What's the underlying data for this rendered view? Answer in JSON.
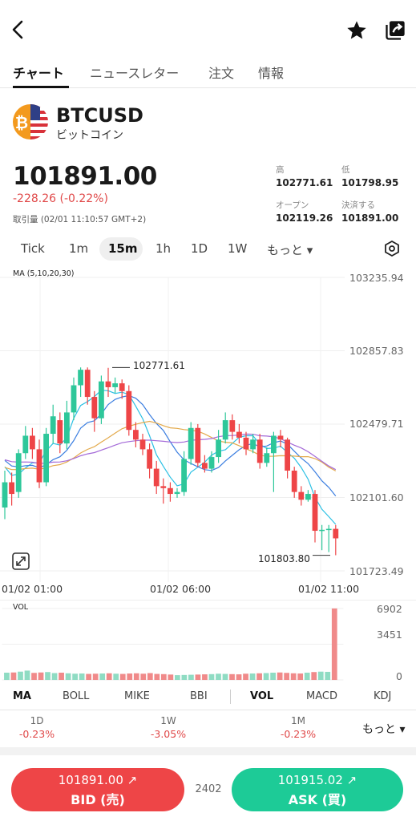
{
  "tabs": [
    "チャート",
    "ニュースレター",
    "注文",
    "情報"
  ],
  "instrument": {
    "symbol": "BTCUSD",
    "name": "ビットコイン",
    "price": "101891.00",
    "change": "-228.26 (-0.22%)",
    "volume_time": "取引量 (02/01 11:10:57 GMT+2)"
  },
  "stats": {
    "high_label": "高",
    "high_value": "102771.61",
    "low_label": "低",
    "low_value": "101798.95",
    "open_label": "オープン",
    "open_value": "102119.26",
    "close_label": "決済する",
    "close_value": "101891.00"
  },
  "periods": [
    "Tick",
    "1m",
    "15m",
    "1h",
    "1D",
    "1W",
    "もっと ▾"
  ],
  "selected_period": "15m",
  "chart_data": {
    "type": "candlestick",
    "indicator": "MA (5,10,20,30)",
    "y_ticks": [
      "103235.94",
      "102857.83",
      "102479.71",
      "102101.60",
      "101723.49"
    ],
    "ylim": [
      101723.49,
      103235.94
    ],
    "x_ticks": [
      "01/02 01:00",
      "01/02 06:00",
      "01/02 11:00"
    ],
    "high_marker": "102771.61",
    "low_marker": "101803.80",
    "candles": [
      {
        "o": 102050,
        "c": 102180,
        "h": 102240,
        "l": 101990
      },
      {
        "o": 102180,
        "c": 102120,
        "h": 102230,
        "l": 102060
      },
      {
        "o": 102130,
        "c": 102330,
        "h": 102350,
        "l": 102100
      },
      {
        "o": 102330,
        "c": 102420,
        "h": 102470,
        "l": 102300
      },
      {
        "o": 102420,
        "c": 102350,
        "h": 102460,
        "l": 102300
      },
      {
        "o": 102350,
        "c": 102180,
        "h": 102400,
        "l": 102150
      },
      {
        "o": 102180,
        "c": 102430,
        "h": 102460,
        "l": 102160
      },
      {
        "o": 102430,
        "c": 102520,
        "h": 102580,
        "l": 102380
      },
      {
        "o": 102500,
        "c": 102380,
        "h": 102540,
        "l": 102330
      },
      {
        "o": 102380,
        "c": 102540,
        "h": 102600,
        "l": 102350
      },
      {
        "o": 102540,
        "c": 102680,
        "h": 102720,
        "l": 102500
      },
      {
        "o": 102680,
        "c": 102760,
        "h": 102772,
        "l": 102620
      },
      {
        "o": 102760,
        "c": 102620,
        "h": 102772,
        "l": 102580
      },
      {
        "o": 102620,
        "c": 102510,
        "h": 102650,
        "l": 102440
      },
      {
        "o": 102510,
        "c": 102700,
        "h": 102730,
        "l": 102480
      },
      {
        "o": 102700,
        "c": 102670,
        "h": 102770,
        "l": 102620
      },
      {
        "o": 102670,
        "c": 102690,
        "h": 102720,
        "l": 102640
      },
      {
        "o": 102690,
        "c": 102650,
        "h": 102710,
        "l": 102610
      },
      {
        "o": 102650,
        "c": 102450,
        "h": 102680,
        "l": 102420
      },
      {
        "o": 102450,
        "c": 102400,
        "h": 102490,
        "l": 102360
      },
      {
        "o": 102400,
        "c": 102350,
        "h": 102430,
        "l": 102320
      },
      {
        "o": 102350,
        "c": 102250,
        "h": 102380,
        "l": 102200
      },
      {
        "o": 102250,
        "c": 102160,
        "h": 102290,
        "l": 102120
      },
      {
        "o": 102160,
        "c": 102150,
        "h": 102200,
        "l": 102070
      },
      {
        "o": 102150,
        "c": 102120,
        "h": 102180,
        "l": 102080
      },
      {
        "o": 102120,
        "c": 102130,
        "h": 102150,
        "l": 102100
      },
      {
        "o": 102130,
        "c": 102300,
        "h": 102340,
        "l": 102110
      },
      {
        "o": 102300,
        "c": 102460,
        "h": 102490,
        "l": 102270
      },
      {
        "o": 102460,
        "c": 102280,
        "h": 102480,
        "l": 102260
      },
      {
        "o": 102280,
        "c": 102250,
        "h": 102320,
        "l": 102230
      },
      {
        "o": 102250,
        "c": 102310,
        "h": 102340,
        "l": 102230
      },
      {
        "o": 102310,
        "c": 102400,
        "h": 102450,
        "l": 102280
      },
      {
        "o": 102400,
        "c": 102500,
        "h": 102540,
        "l": 102380
      },
      {
        "o": 102500,
        "c": 102440,
        "h": 102530,
        "l": 102400
      },
      {
        "o": 102440,
        "c": 102410,
        "h": 102480,
        "l": 102380
      },
      {
        "o": 102410,
        "c": 102350,
        "h": 102440,
        "l": 102320
      },
      {
        "o": 102350,
        "c": 102400,
        "h": 102430,
        "l": 102330
      },
      {
        "o": 102400,
        "c": 102280,
        "h": 102430,
        "l": 102250
      },
      {
        "o": 102280,
        "c": 102330,
        "h": 102360,
        "l": 102260
      },
      {
        "o": 102330,
        "c": 102420,
        "h": 102440,
        "l": 102130
      },
      {
        "o": 102420,
        "c": 102400,
        "h": 102450,
        "l": 102360
      },
      {
        "o": 102400,
        "c": 102240,
        "h": 102410,
        "l": 102200
      },
      {
        "o": 102240,
        "c": 102130,
        "h": 102260,
        "l": 102100
      },
      {
        "o": 102130,
        "c": 102090,
        "h": 102160,
        "l": 102060
      },
      {
        "o": 102090,
        "c": 102120,
        "h": 102140,
        "l": 102080
      },
      {
        "o": 102120,
        "c": 101930,
        "h": 102140,
        "l": 101870
      },
      {
        "o": 101930,
        "c": 101935,
        "h": 101960,
        "l": 101830
      },
      {
        "o": 101935,
        "c": 101940,
        "h": 101960,
        "l": 101820
      },
      {
        "o": 101940,
        "c": 101891,
        "h": 101960,
        "l": 101804
      }
    ],
    "ma_series": [
      {
        "name": "MA5",
        "color": "#2bc0e4"
      },
      {
        "name": "MA10",
        "color": "#3b7ee0"
      },
      {
        "name": "MA20",
        "color": "#e3a94a"
      },
      {
        "name": "MA30",
        "color": "#a46ad8"
      }
    ],
    "volume": {
      "label": "VOL",
      "y_ticks": [
        "6902",
        "3451",
        "0"
      ],
      "ylim": [
        0,
        6902
      ],
      "values": [
        700,
        720,
        800,
        900,
        680,
        720,
        760,
        660,
        700,
        640,
        600,
        620,
        580,
        600,
        620,
        640,
        600,
        580,
        620,
        640,
        600,
        660,
        580,
        560,
        520,
        460,
        480,
        500,
        520,
        540,
        560,
        600,
        580,
        560,
        540,
        600,
        620,
        640,
        660,
        700,
        720,
        680,
        640,
        620,
        700,
        760,
        800,
        780,
        6902
      ]
    }
  },
  "indicators": [
    "MA",
    "BOLL",
    "MIKE",
    "BBI",
    "VOL",
    "MACD",
    "KDJ"
  ],
  "active_indicators": [
    "MA",
    "VOL"
  ],
  "performance": [
    {
      "period": "1D",
      "value": "-0.23%"
    },
    {
      "period": "1W",
      "value": "-3.05%"
    },
    {
      "period": "1M",
      "value": "-0.23%"
    }
  ],
  "perf_more": "もっと ▾",
  "trade": {
    "bid_price": "101891.00",
    "bid_label": "BID (売)",
    "spread": "2402",
    "ask_price": "101915.02",
    "ask_label": "ASK (買)"
  },
  "colors": {
    "up": "#2ec79a",
    "down": "#ee4547",
    "bid_button": "#ee4547",
    "ask_button": "#1dcb97"
  }
}
